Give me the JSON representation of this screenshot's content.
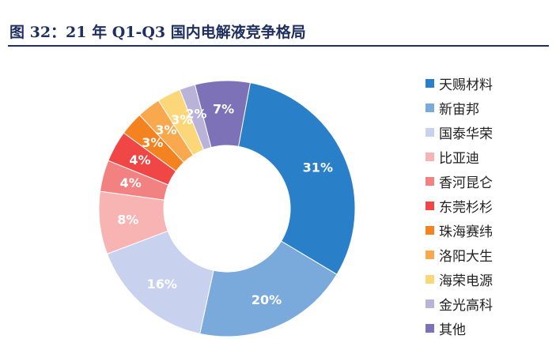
{
  "title": "图 32：21 年 Q1-Q3 国内电解液竞争格局",
  "chart_data": {
    "type": "pie",
    "subtype": "donut",
    "legend_position": "right",
    "slices": [
      {
        "name": "天赐材料",
        "value": 31,
        "label": "31%",
        "color": "#2a80c8"
      },
      {
        "name": "新宙邦",
        "value": 20,
        "label": "20%",
        "color": "#7aaadb"
      },
      {
        "name": "国泰华荣",
        "value": 16,
        "label": "16%",
        "color": "#c8d1ee"
      },
      {
        "name": "比亚迪",
        "value": 8,
        "label": "8%",
        "color": "#f8b3b3"
      },
      {
        "name": "香河昆仑",
        "value": 4,
        "label": "4%",
        "color": "#f28181"
      },
      {
        "name": "东莞杉杉",
        "value": 4,
        "label": "4%",
        "color": "#f04646"
      },
      {
        "name": "珠海赛纬",
        "value": 3,
        "label": "3%",
        "color": "#f58220"
      },
      {
        "name": "洛阳大生",
        "value": 3,
        "label": "3%",
        "color": "#f9a84d"
      },
      {
        "name": "海荣电源",
        "value": 3,
        "label": "3%",
        "color": "#fcd77a"
      },
      {
        "name": "金光高科",
        "value": 2,
        "label": "2%",
        "color": "#b9b3d9"
      },
      {
        "name": "其他",
        "value": 7,
        "label": "7%",
        "color": "#7d71b8"
      }
    ]
  }
}
